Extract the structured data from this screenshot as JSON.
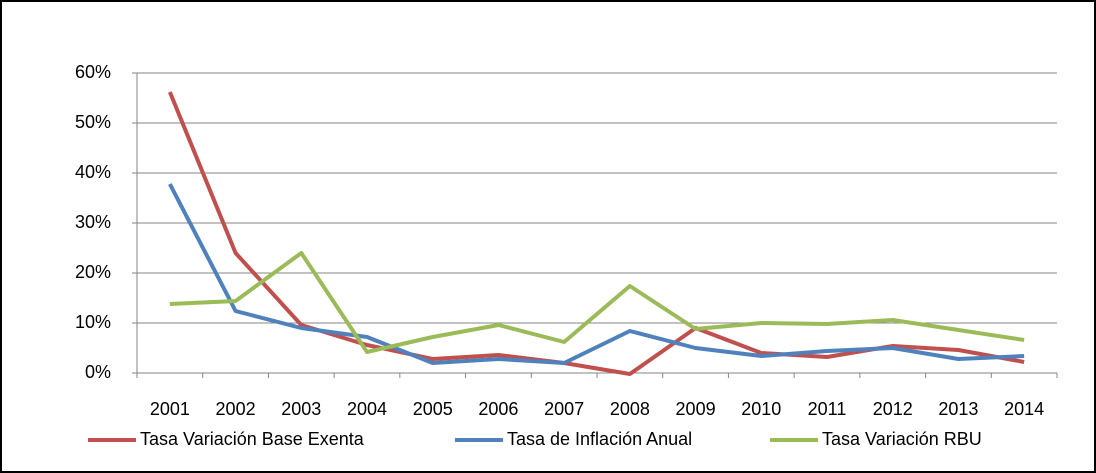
{
  "chart_data": {
    "type": "line",
    "categories": [
      "2001",
      "2002",
      "2003",
      "2004",
      "2005",
      "2006",
      "2007",
      "2008",
      "2009",
      "2010",
      "2011",
      "2012",
      "2013",
      "2014"
    ],
    "series": [
      {
        "name": "Tasa Variación Base Exenta",
        "color": "#c0504d",
        "values": [
          56.2,
          24,
          9.6,
          5.6,
          2.8,
          3.6,
          2,
          -0.2,
          9,
          4,
          3.2,
          5.4,
          4.6,
          2.2
        ]
      },
      {
        "name": "Tasa de Inflación Anual",
        "color": "#4f81bd",
        "values": [
          37.8,
          12.4,
          9,
          7.2,
          2,
          2.8,
          2,
          8.4,
          5,
          3.4,
          4.4,
          5,
          2.8,
          3.4
        ]
      },
      {
        "name": "Tasa Variación RBU",
        "color": "#9bbb59",
        "values": [
          13.8,
          14.4,
          24,
          4.2,
          7.2,
          9.6,
          6.2,
          17.4,
          8.8,
          10,
          9.8,
          10.6,
          8.6,
          6.6
        ]
      }
    ],
    "ylim": [
      0,
      60
    ],
    "yticks": [
      {
        "value": 0,
        "label": "0%"
      },
      {
        "value": 10,
        "label": "10%"
      },
      {
        "value": 20,
        "label": "20%"
      },
      {
        "value": 30,
        "label": "30%"
      },
      {
        "value": 40,
        "label": "40%"
      },
      {
        "value": 50,
        "label": "50%"
      },
      {
        "value": 60,
        "label": "60%"
      }
    ],
    "grid": true,
    "legend": "bottom"
  }
}
